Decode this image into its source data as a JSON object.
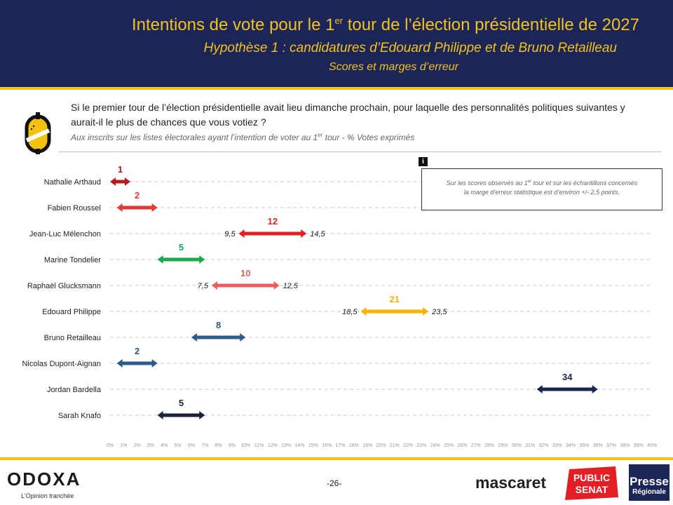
{
  "header": {
    "title_main": "Intentions de vote pour le 1",
    "title_sup": "er",
    "title_end": " tour de l’élection présidentielle de 2027",
    "subtitle": "Hypothèse 1 : candidatures d’Edouard Philippe et de Bruno Retailleau",
    "subsubtitle": "Scores et marges d’erreur"
  },
  "question": {
    "text": "Si le premier tour de l’élection présidentielle avait lieu dimanche prochain, pour laquelle des personnalités politiques suivantes y aurait-il le plus de chances que vous votiez ?",
    "universe_main": "Aux inscrits sur les listes électorales ayant l’intention de voter au 1",
    "universe_sup": "er",
    "universe_end": " tour  - % Votes exprimés"
  },
  "info": {
    "icon": "i",
    "line1_main": "Sur les scores observés au 1",
    "line1_sup": "er",
    "line1_end": " tour et sur les échantillons concernés",
    "line2": "la marge d’erreur statistique est d’environ +/- 2,5 points."
  },
  "chart_data": {
    "type": "error-range",
    "xlim": [
      0,
      40
    ],
    "ticks": [
      "0%",
      "1%",
      "2%",
      "3%",
      "4%",
      "5%",
      "6%",
      "7%",
      "8%",
      "9%",
      "10%",
      "11%",
      "12%",
      "13%",
      "14%",
      "15%",
      "16%",
      "17%",
      "18%",
      "19%",
      "20%",
      "21%",
      "22%",
      "23%",
      "24%",
      "25%",
      "26%",
      "27%",
      "28%",
      "29%",
      "30%",
      "31%",
      "32%",
      "33%",
      "34%",
      "35%",
      "36%",
      "37%",
      "38%",
      "39%",
      "40%"
    ],
    "rows": [
      {
        "name": "Nathalie Arthaud",
        "score": 1,
        "low": 0,
        "high": 1.5,
        "color": "#b71c1c",
        "low_label": "",
        "high_label": ""
      },
      {
        "name": "Fabien Roussel",
        "score": 2,
        "low": 0.5,
        "high": 3.5,
        "color": "#e53935",
        "low_label": "",
        "high_label": ""
      },
      {
        "name": "Jean-Luc Mélenchon",
        "score": 12,
        "low": 9.5,
        "high": 14.5,
        "color": "#e62020",
        "low_label": "9,5",
        "high_label": "14,5"
      },
      {
        "name": "Marine Tondelier",
        "score": 5,
        "low": 3.5,
        "high": 7,
        "color": "#1aa84f",
        "low_label": "",
        "high_label": ""
      },
      {
        "name": "Raphaël Glucksmann",
        "score": 10,
        "low": 7.5,
        "high": 12.5,
        "color": "#ef5c5c",
        "low_label": "7,5",
        "high_label": "12,5"
      },
      {
        "name": "Edouard Philippe",
        "score": 21,
        "low": 18.5,
        "high": 23.5,
        "color": "#f4b400",
        "low_label": "18,5",
        "high_label": "23,5"
      },
      {
        "name": "Bruno Retailleau",
        "score": 8,
        "low": 6,
        "high": 10,
        "color": "#2f5b8c",
        "low_label": "",
        "high_label": ""
      },
      {
        "name": "Nicolas Dupont-Aignan",
        "score": 2,
        "low": 0.5,
        "high": 3.5,
        "color": "#2f5b8c",
        "low_label": "",
        "high_label": ""
      },
      {
        "name": "Jordan Bardella",
        "score": 34,
        "low": 31.5,
        "high": 36,
        "color": "#17264f",
        "low_label": "",
        "high_label": ""
      },
      {
        "name": "Sarah Knafo",
        "score": 5,
        "low": 3.5,
        "high": 7,
        "color": "#1a2340",
        "low_label": "",
        "high_label": ""
      }
    ]
  },
  "footer": {
    "page": "-26-",
    "odoxa": "ODOXA",
    "odoxa_tagline": "L'Opinion tranchée",
    "mascaret": "mascaret",
    "public_senat_1": "PUBLIC",
    "public_senat_2": "SENAT",
    "presse_1": "Presse",
    "presse_2": "Régionale"
  }
}
